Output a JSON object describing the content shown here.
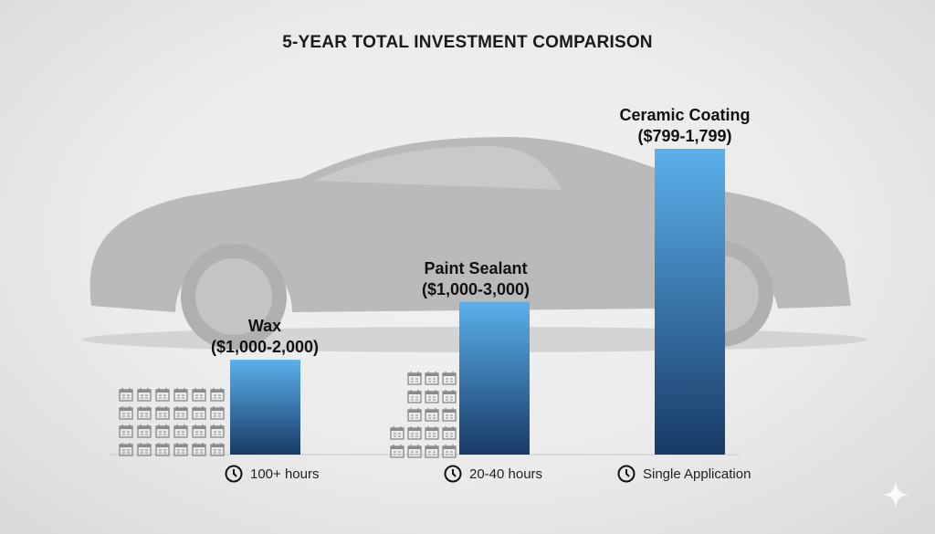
{
  "chart_data": {
    "type": "bar",
    "title": "5-YEAR TOTAL INVESTMENT COMPARISON",
    "categories": [
      "Wax",
      "Paint Sealant",
      "Ceramic Coating"
    ],
    "value_labels": [
      "($1,000-2,000)",
      "($1,000-3,000)",
      "($799-1,799)"
    ],
    "relative_bar_heights": [
      0.31,
      0.5,
      1.0
    ],
    "time_labels": [
      "100+ hours",
      "20-40 hours",
      "Single Application"
    ],
    "calendar_icon_counts": [
      24,
      17,
      0
    ],
    "grid": false,
    "legend": "none",
    "colors": {
      "bar_top": "#5bb0ec",
      "bar_bottom": "#183a66",
      "car_silhouette": "#bababa",
      "calendar_icon": "#8a8a8a"
    }
  },
  "icons": {
    "clock": "clock-icon",
    "calendar": "calendar-icon",
    "sparkle": "sparkle-icon",
    "background": "car-silhouette"
  }
}
